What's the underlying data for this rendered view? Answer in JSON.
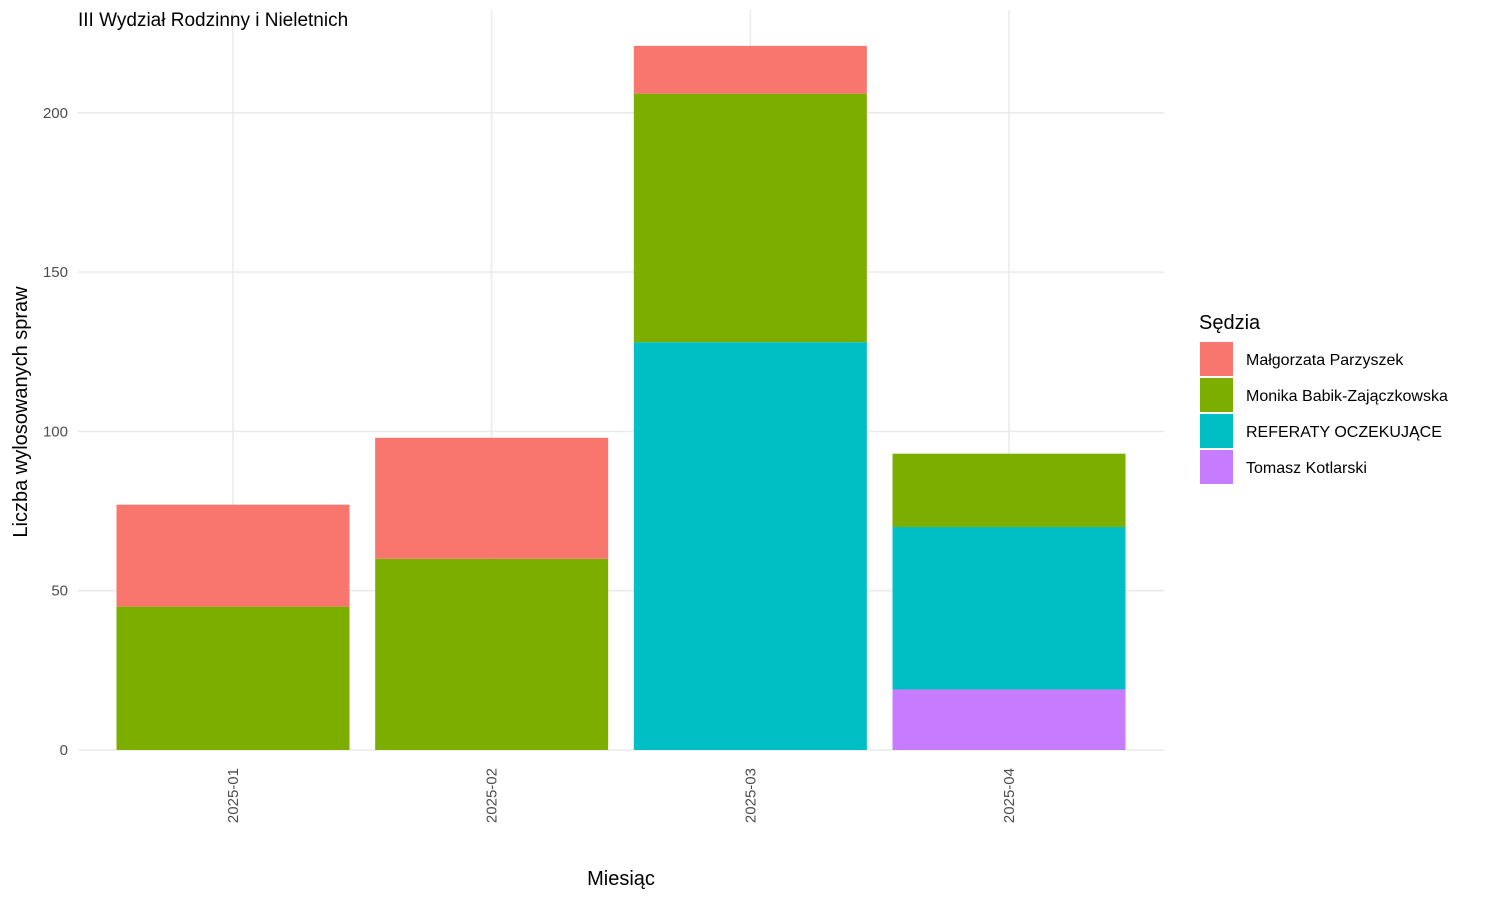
{
  "chart_data": {
    "type": "bar",
    "stacked": true,
    "title": "III Wydział Rodzinny i Nieletnich",
    "xlabel": "Miesiąc",
    "ylabel": "Liczba wylosowanych spraw",
    "categories": [
      "2025-01",
      "2025-02",
      "2025-03",
      "2025-04"
    ],
    "ylim": [
      0,
      223
    ],
    "yticks": [
      0,
      50,
      100,
      150,
      200
    ],
    "grid": true,
    "legend": {
      "title": "Sędzia",
      "position": "right"
    },
    "series": [
      {
        "name": "Tomasz Kotlarski",
        "color": "#C77CFF",
        "values": [
          0,
          0,
          0,
          19
        ]
      },
      {
        "name": "REFERATY OCZEKUJĄCE",
        "color": "#00BFC4",
        "values": [
          0,
          0,
          128,
          51
        ]
      },
      {
        "name": "Monika Babik-Zajączkowska",
        "color": "#7CAE00",
        "values": [
          45,
          60,
          78,
          23
        ]
      },
      {
        "name": "Małgorzata Parzyszek",
        "color": "#F8766D",
        "values": [
          32,
          38,
          15,
          0
        ]
      }
    ],
    "legend_order": [
      "Małgorzata Parzyszek",
      "Monika Babik-Zajączkowska",
      "REFERATY OCZEKUJĄCE",
      "Tomasz Kotlarski"
    ]
  }
}
